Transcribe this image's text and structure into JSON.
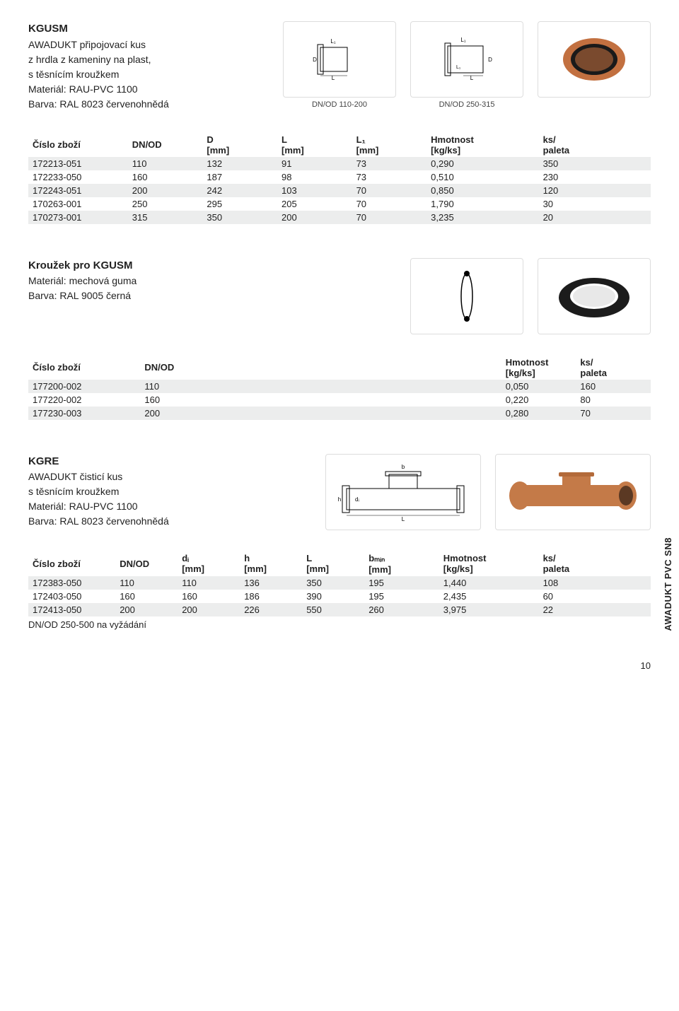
{
  "side_label": "AWADUKT PVC SN8",
  "page_number": "10",
  "kgusm": {
    "code": "KGUSM",
    "lines": [
      "AWADUKT připojovací kus",
      "z hrdla z kameniny na plast,",
      "s těsnícím kroužkem",
      "Materiál: RAU-PVC 1100",
      "Barva: RAL 8023 červenohnědá"
    ],
    "cap1": "DN/OD 110-200",
    "cap2": "DN/OD 250-315",
    "headers": {
      "c0": "Číslo zboží",
      "c1": "DN/OD",
      "c2t": "D",
      "c2b": "[mm]",
      "c3t": "L",
      "c3b": "[mm]",
      "c4t": "L₁",
      "c4b": "[mm]",
      "c5t": "Hmotnost",
      "c5b": "[kg/ks]",
      "c6t": "ks/",
      "c6b": "paleta"
    },
    "rows": [
      [
        "172213-051",
        "110",
        "132",
        "91",
        "73",
        "0,290",
        "350"
      ],
      [
        "172233-050",
        "160",
        "187",
        "98",
        "73",
        "0,510",
        "230"
      ],
      [
        "172243-051",
        "200",
        "242",
        "103",
        "70",
        "0,850",
        "120"
      ],
      [
        "170263-001",
        "250",
        "295",
        "205",
        "70",
        "1,790",
        "30"
      ],
      [
        "170273-001",
        "315",
        "350",
        "200",
        "70",
        "3,235",
        "20"
      ]
    ]
  },
  "ring": {
    "title": "Kroužek pro KGUSM",
    "lines": [
      "Materiál: mechová guma",
      "Barva: RAL 9005 černá"
    ],
    "headers": {
      "c0": "Číslo zboží",
      "c1": "DN/OD",
      "c5t": "Hmotnost",
      "c5b": "[kg/ks]",
      "c6t": "ks/",
      "c6b": "paleta"
    },
    "rows": [
      [
        "177200-002",
        "110",
        "0,050",
        "160"
      ],
      [
        "177220-002",
        "160",
        "0,220",
        "80"
      ],
      [
        "177230-003",
        "200",
        "0,280",
        "70"
      ]
    ]
  },
  "kgre": {
    "code": "KGRE",
    "lines": [
      "AWADUKT čisticí kus",
      "s těsnícím kroužkem",
      "Materiál: RAU-PVC 1100",
      "Barva: RAL 8023 červenohnědá"
    ],
    "headers": {
      "c0": "Číslo zboží",
      "c1": "DN/OD",
      "c2t": "dᵢ",
      "c2b": "[mm]",
      "c3t": "h",
      "c3b": "[mm]",
      "c4t": "L",
      "c4b": "[mm]",
      "c5t": "bₘᵢₙ",
      "c5b": "[mm]",
      "c6t": "Hmotnost",
      "c6b": "[kg/ks]",
      "c7t": "ks/",
      "c7b": "paleta"
    },
    "rows": [
      [
        "172383-050",
        "110",
        "110",
        "136",
        "350",
        "195",
        "1,440",
        "108"
      ],
      [
        "172403-050",
        "160",
        "160",
        "186",
        "390",
        "195",
        "2,435",
        "60"
      ],
      [
        "172413-050",
        "200",
        "200",
        "226",
        "550",
        "260",
        "3,975",
        "22"
      ]
    ],
    "note": "DN/OD 250-500 na vyžádání"
  }
}
